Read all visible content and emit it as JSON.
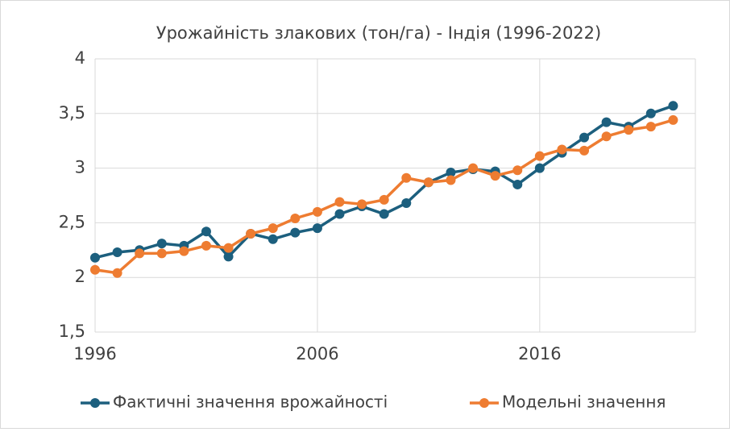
{
  "chart_data": {
    "type": "line",
    "title": "Урожайність злакових (тон/га) - Індія (1996-2022)",
    "x": [
      1996,
      1997,
      1998,
      1999,
      2000,
      2001,
      2002,
      2003,
      2004,
      2005,
      2006,
      2007,
      2008,
      2009,
      2010,
      2011,
      2012,
      2013,
      2014,
      2015,
      2016,
      2017,
      2018,
      2019,
      2020,
      2021,
      2022
    ],
    "series": [
      {
        "name": "Фактичні значення врожайності",
        "color": "#1c5f7e",
        "values": [
          2.18,
          2.23,
          2.25,
          2.31,
          2.29,
          2.42,
          2.19,
          2.4,
          2.35,
          2.41,
          2.45,
          2.58,
          2.65,
          2.58,
          2.68,
          2.87,
          2.96,
          2.99,
          2.97,
          2.85,
          3.0,
          3.14,
          3.28,
          3.42,
          3.38,
          3.5,
          3.57
        ]
      },
      {
        "name": "Модельні значення",
        "color": "#ee7c31",
        "values": [
          2.07,
          2.04,
          2.22,
          2.22,
          2.24,
          2.29,
          2.27,
          2.4,
          2.45,
          2.54,
          2.6,
          2.69,
          2.67,
          2.71,
          2.91,
          2.87,
          2.89,
          3.0,
          2.93,
          2.98,
          3.11,
          3.17,
          3.16,
          3.29,
          3.35,
          3.38,
          3.44
        ]
      }
    ],
    "xlim": [
      1996,
      2023
    ],
    "xticks": [
      1996,
      2006,
      2016
    ],
    "ylim": [
      1.5,
      4
    ],
    "yticks": [
      {
        "value": 1.5,
        "label": "1,5"
      },
      2,
      {
        "value": 2.5,
        "label": "2,5"
      },
      3,
      {
        "value": 3.5,
        "label": "3,5"
      },
      4
    ],
    "grid": true,
    "legend": "bottom"
  }
}
